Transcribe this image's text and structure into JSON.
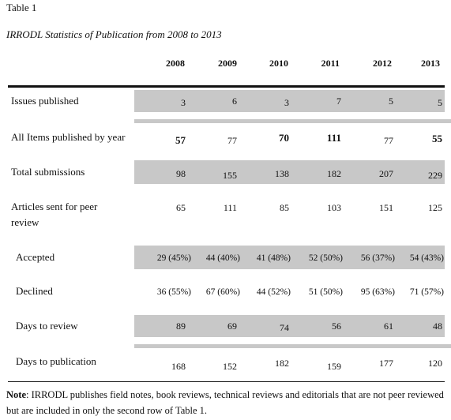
{
  "table_number": "Table 1",
  "table_title": "IRRODL Statistics of Publication from 2008 to 2013",
  "years": [
    "2008",
    "2009",
    "2010",
    "2011",
    "2012",
    "2013"
  ],
  "rows": [
    {
      "label": "Issues published",
      "values": [
        "3",
        "6",
        "3",
        "7",
        "5",
        "5"
      ]
    },
    {
      "label": "All Items published by year",
      "values": [
        "57",
        "77",
        "70",
        "111",
        "77",
        "55"
      ]
    },
    {
      "label": "Total submissions",
      "values": [
        "98",
        "155",
        "138",
        "182",
        "207",
        "229"
      ]
    },
    {
      "label_line1": "Articles sent for peer",
      "label_line2": "review",
      "values": [
        "65",
        "111",
        "85",
        "103",
        "151",
        "125"
      ]
    },
    {
      "label": "Accepted",
      "values": [
        "29 (45%)",
        "44 (40%)",
        "41 (48%)",
        "52 (50%)",
        "56 (37%)",
        "54 (43%)"
      ]
    },
    {
      "label": "Declined",
      "values": [
        "36 (55%)",
        "67 (60%)",
        "44 (52%)",
        "51 (50%)",
        "95 (63%)",
        "71 (57%)"
      ]
    },
    {
      "label": "Days to review",
      "values": [
        "89",
        "69",
        "74",
        "56",
        "61",
        "48"
      ]
    },
    {
      "label": "Days to publication",
      "values": [
        "168",
        "152",
        "182",
        "159",
        "177",
        "120"
      ]
    }
  ],
  "note": {
    "prefix": "Note",
    "text": ": IRRODL publishes field notes, book reviews, technical reviews and editorials that are not peer reviewed but are included in only the second row of Table 1."
  }
}
